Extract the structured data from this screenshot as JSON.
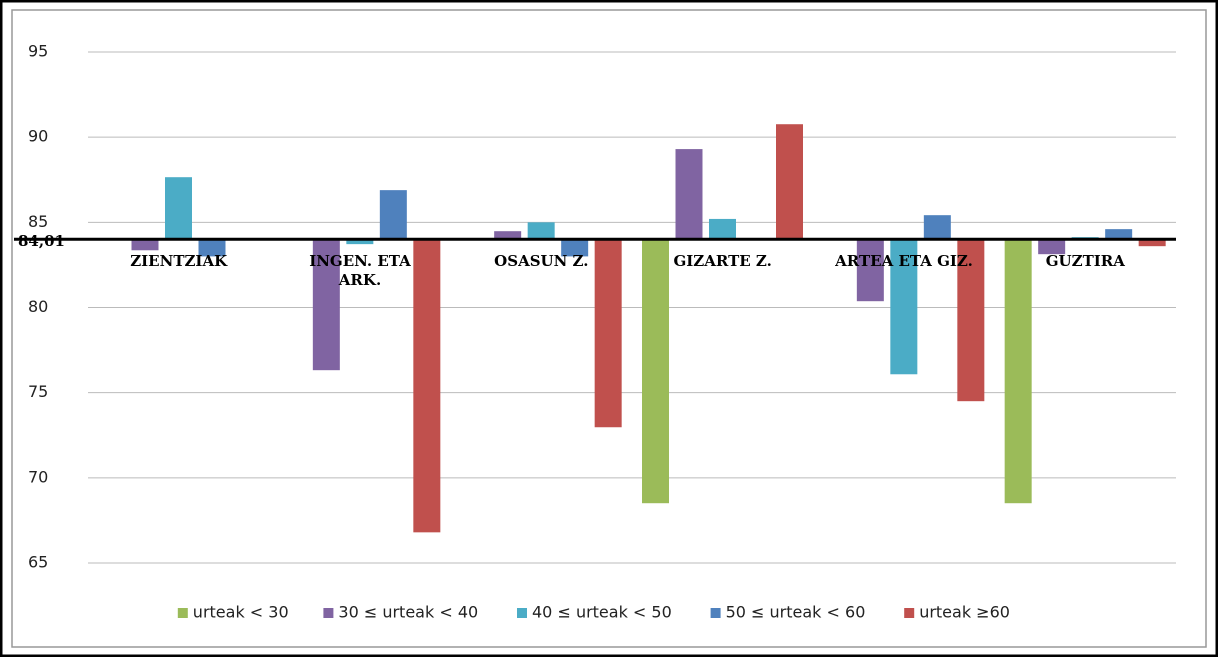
{
  "chart_data": {
    "type": "bar",
    "categories": [
      "ZIENTZIAK",
      "INGEN. ETA\nARK.",
      "OSASUN Z.",
      "GIZARTE Z.",
      "ARTEA ETA GIZ.",
      "GUZTIRA"
    ],
    "series": [
      {
        "name": "urteak < 30",
        "color": "#9bbb59",
        "values": [
          null,
          null,
          null,
          68.51,
          null,
          68.51
        ]
      },
      {
        "name": "30 ≤ urteak < 40",
        "color": "#8064a2",
        "values": [
          83.36,
          76.32,
          84.48,
          89.3,
          80.37,
          83.13
        ]
      },
      {
        "name": "40 ≤ urteak < 50",
        "color": "#4bacc6",
        "values": [
          87.65,
          83.72,
          85.0,
          85.2,
          76.08,
          84.13
        ]
      },
      {
        "name": "50 ≤ urteak < 60",
        "color": "#4f81bd",
        "values": [
          83.0,
          86.89,
          83.0,
          null,
          85.42,
          84.6
        ]
      },
      {
        "name": "urteak ≥60",
        "color": "#c0504d",
        "values": [
          null,
          66.8,
          72.97,
          90.76,
          74.5,
          83.6
        ]
      }
    ],
    "baseline": {
      "value": 84.01,
      "label": "84,01"
    },
    "ylim": [
      65,
      95
    ],
    "yticks": [
      65,
      70,
      75,
      80,
      85,
      90,
      95
    ],
    "grid": true,
    "legend": "bottom"
  }
}
